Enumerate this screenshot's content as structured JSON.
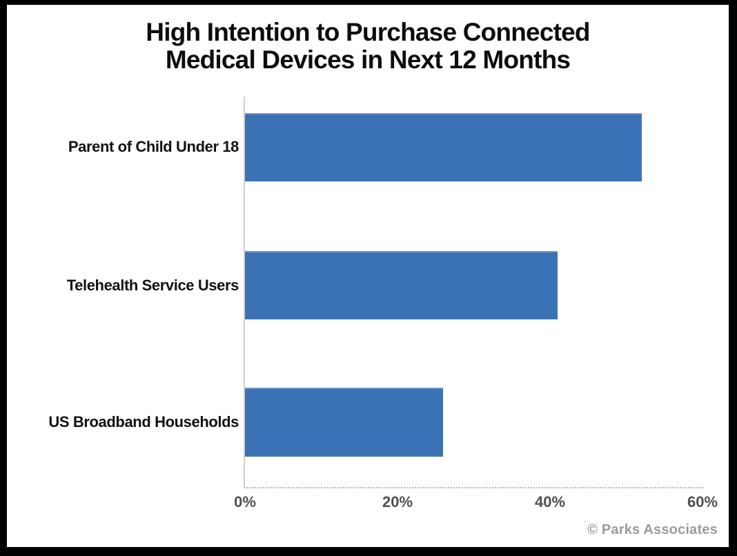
{
  "chart_data": {
    "type": "bar",
    "orientation": "horizontal",
    "title": "High Intention to Purchase Connected Medical Devices in Next 12 Months",
    "title_lines": [
      "High Intention to Purchase Connected",
      "Medical Devices in Next 12 Months"
    ],
    "categories": [
      "Parent of Child Under 18",
      "Telehealth Service Users",
      "US Broadband Households"
    ],
    "values": [
      52,
      41,
      26
    ],
    "unit": "%",
    "xlim": [
      0,
      60
    ],
    "x_tick_values": [
      0,
      20,
      40,
      60
    ],
    "x_ticks": [
      "0%",
      "20%",
      "40%",
      "60%"
    ],
    "xlabel": "",
    "ylabel": "",
    "legend": "none",
    "grid": "dotted-baseline-only",
    "bar_color": "#3b72b5",
    "axis_line_color": "#cfcfcf",
    "baseline_color": "#b3b3b3",
    "tick_label_color": "#4f4f4f",
    "title_color": "#0d0d0d",
    "background_color": "#ffffff",
    "frame_color": "#000000"
  },
  "footer": {
    "credit": "© Parks Associates"
  }
}
